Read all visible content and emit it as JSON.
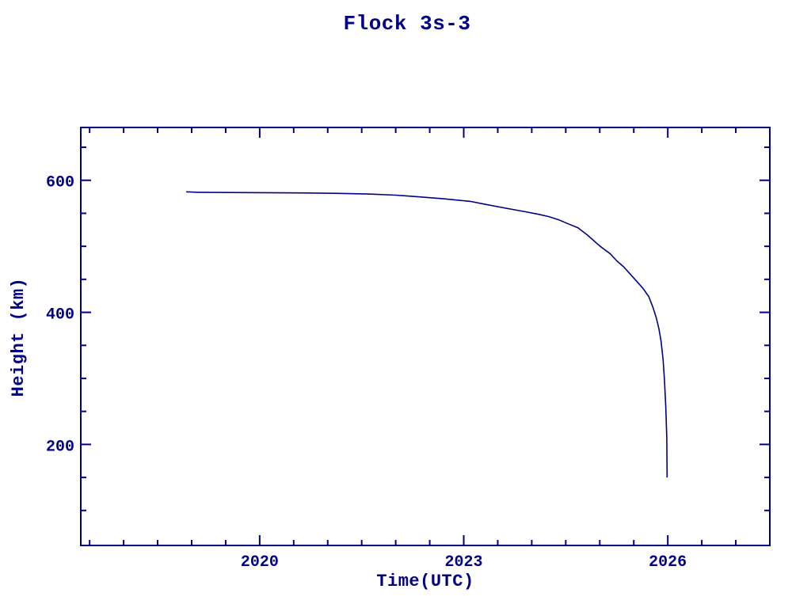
{
  "window": {
    "background": "#ffffff"
  },
  "chart_data": {
    "type": "line",
    "title": "Flock 3s-3",
    "xlabel": "Time(UTC)",
    "ylabel": "Height (km)",
    "color": "#000087",
    "background": "#ffffff",
    "grid": false,
    "legend": "none",
    "frame": "box",
    "tick_direction": "in",
    "xlim": [
      2017.37,
      2027.5
    ],
    "ylim": [
      47,
      680
    ],
    "x_ticks": {
      "major": [
        2020,
        2023,
        2026
      ],
      "labels": [
        "2020",
        "2023",
        "2026"
      ],
      "minor": [
        2017.5,
        2018,
        2018.5,
        2019,
        2019.5,
        2020.5,
        2021,
        2021.5,
        2022,
        2022.5,
        2023.5,
        2024,
        2024.5,
        2025,
        2025.5,
        2026.5,
        2027,
        2027.5
      ]
    },
    "y_ticks": {
      "major": [
        200,
        400,
        600
      ],
      "labels": [
        "200",
        "400",
        "600"
      ],
      "minor": [
        100,
        150,
        250,
        300,
        350,
        450,
        500,
        550,
        650
      ]
    },
    "series": [
      {
        "points": [
          [
            2018.92,
            582.5
          ],
          [
            2019.1,
            581.8
          ],
          [
            2019.6,
            581.5
          ],
          [
            2020.1,
            581.2
          ],
          [
            2020.6,
            580.8
          ],
          [
            2021.1,
            580.2
          ],
          [
            2021.6,
            579.2
          ],
          [
            2022.0,
            577.5
          ],
          [
            2022.35,
            574.8
          ],
          [
            2022.7,
            572.0
          ],
          [
            2023.1,
            568.0
          ],
          [
            2023.3,
            564.0
          ],
          [
            2023.55,
            559.0
          ],
          [
            2023.9,
            552.5
          ],
          [
            2024.1,
            548.5
          ],
          [
            2024.25,
            545.0
          ],
          [
            2024.4,
            540.0
          ],
          [
            2024.55,
            533.5
          ],
          [
            2024.68,
            528.0
          ],
          [
            2024.82,
            517.0
          ],
          [
            2025.0,
            500.5
          ],
          [
            2025.15,
            489.0
          ],
          [
            2025.25,
            478.0
          ],
          [
            2025.35,
            469.0
          ],
          [
            2025.5,
            452.0
          ],
          [
            2025.63,
            437.0
          ],
          [
            2025.72,
            424.0
          ],
          [
            2025.78,
            408.0
          ],
          [
            2025.83,
            392.0
          ],
          [
            2025.87,
            375.0
          ],
          [
            2025.9,
            357.0
          ],
          [
            2025.93,
            329.0
          ],
          [
            2025.95,
            299.0
          ],
          [
            2025.97,
            258.0
          ],
          [
            2025.985,
            210.0
          ],
          [
            2025.99,
            150.0
          ]
        ]
      }
    ]
  }
}
